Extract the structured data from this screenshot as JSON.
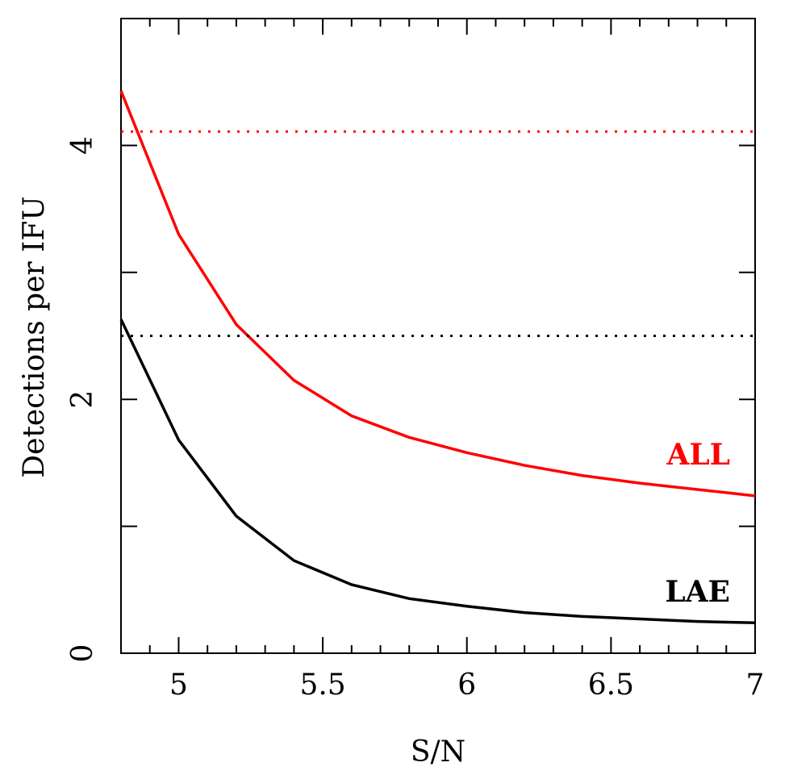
{
  "chart_data": {
    "type": "line",
    "xlabel": "S/N",
    "ylabel": "Detections per IFU",
    "x": [
      4.8,
      5.0,
      5.2,
      5.4,
      5.6,
      5.8,
      6.0,
      6.2,
      6.4,
      6.6,
      6.8,
      7.0
    ],
    "series": [
      {
        "name": "ALL",
        "color": "#ff0000",
        "values": [
          4.43,
          3.3,
          2.59,
          2.15,
          1.87,
          1.7,
          1.58,
          1.48,
          1.4,
          1.34,
          1.29,
          1.24
        ],
        "reference": 4.11
      },
      {
        "name": "LAE",
        "color": "#000000",
        "values": [
          2.63,
          1.68,
          1.08,
          0.73,
          0.54,
          0.43,
          0.37,
          0.32,
          0.29,
          0.27,
          0.25,
          0.24
        ],
        "reference": 2.5
      }
    ],
    "xlim": [
      4.8,
      7
    ],
    "ylim": [
      0,
      5
    ],
    "xticks": [
      5,
      5.5,
      6,
      6.5,
      7
    ],
    "yticks": [
      0,
      2,
      4
    ],
    "xminorticks": [
      4.9,
      5.1,
      5.2,
      5.3,
      5.4,
      5.6,
      5.7,
      5.8,
      5.9,
      6.1,
      6.2,
      6.3,
      6.4,
      6.6,
      6.7,
      6.8,
      6.9
    ],
    "yminorticks": [
      1,
      3
    ]
  }
}
